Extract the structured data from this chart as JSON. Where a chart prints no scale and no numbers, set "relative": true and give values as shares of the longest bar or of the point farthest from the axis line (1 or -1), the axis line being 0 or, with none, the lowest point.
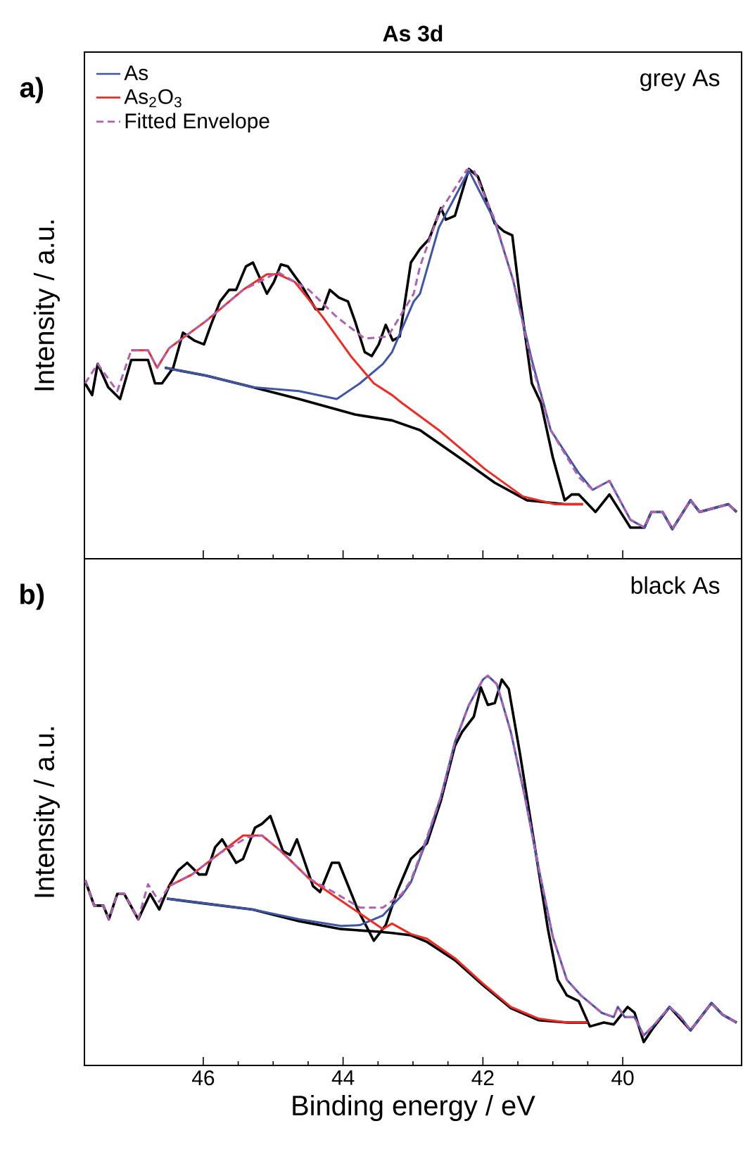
{
  "chart_data": [
    {
      "type": "line",
      "title": "As 3d",
      "ylabel": "Intensity / a.u.",
      "relative": true,
      "xlim": [
        47.7,
        38.3
      ],
      "xticks": [
        46,
        44,
        42,
        40
      ],
      "tick_labels": false,
      "legend": "top left",
      "annotations": [
        "a)",
        "grey As"
      ],
      "series": [
        {
          "color": "#000000",
          "x": [
            47.69,
            47.59,
            47.51,
            47.36,
            47.19,
            47.03,
            46.79,
            46.69,
            46.59,
            46.43,
            46.29,
            46.13,
            45.99,
            45.89,
            45.76,
            45.63,
            45.53,
            45.39,
            45.29,
            45.09,
            44.99,
            44.89,
            44.79,
            44.59,
            44.39,
            44.29,
            44.19,
            44.06,
            43.93,
            43.83,
            43.69,
            43.59,
            43.49,
            43.39,
            43.29,
            43.19,
            43.03,
            42.9,
            42.77,
            42.6,
            42.53,
            42.4,
            42.2,
            42.07,
            41.83,
            41.7,
            41.58,
            41.47,
            41.3,
            41.17,
            41.0,
            40.83,
            40.73,
            40.63,
            40.39,
            40.19,
            39.89,
            39.69,
            39.59,
            39.43,
            39.29,
            39.03,
            38.9,
            38.49,
            38.37
          ],
          "values": [
            0.45,
            0.42,
            0.5,
            0.44,
            0.41,
            0.51,
            0.51,
            0.45,
            0.45,
            0.49,
            0.58,
            0.56,
            0.55,
            0.6,
            0.66,
            0.69,
            0.69,
            0.75,
            0.76,
            0.68,
            0.71,
            0.755,
            0.75,
            0.7,
            0.64,
            0.64,
            0.69,
            0.67,
            0.66,
            0.61,
            0.53,
            0.52,
            0.55,
            0.6,
            0.56,
            0.57,
            0.76,
            0.795,
            0.82,
            0.9,
            0.87,
            0.88,
            1.0,
            0.98,
            0.86,
            0.84,
            0.83,
            0.67,
            0.45,
            0.4,
            0.26,
            0.15,
            0.165,
            0.165,
            0.12,
            0.165,
            0.08,
            0.08,
            0.12,
            0.12,
            0.076,
            0.15,
            0.12,
            0.14,
            0.12
          ]
        },
        {
          "color": "#000000",
          "x": [
            46.55,
            45.96,
            45.29,
            44.63,
            43.83,
            43.3,
            42.9,
            42.3,
            41.83,
            41.37,
            40.83,
            40.57
          ],
          "values": [
            0.49,
            0.47,
            0.44,
            0.41,
            0.37,
            0.355,
            0.33,
            0.255,
            0.195,
            0.15,
            0.14,
            0.14
          ]
        },
        {
          "name": "As",
          "color": "#3f55a6",
          "x": [
            46.55,
            45.96,
            45.29,
            44.63,
            44.09,
            43.76,
            43.43,
            43.3,
            42.99,
            42.9,
            42.63,
            42.2,
            41.83,
            41.57,
            41.3,
            41.03,
            40.63,
            40.43,
            40.19,
            39.89,
            39.69,
            39.59,
            39.43,
            39.29,
            39.03,
            38.9,
            38.49,
            38.37
          ],
          "values": [
            0.49,
            0.47,
            0.44,
            0.43,
            0.41,
            0.45,
            0.5,
            0.53,
            0.66,
            0.68,
            0.85,
            0.996,
            0.866,
            0.716,
            0.51,
            0.33,
            0.22,
            0.177,
            0.2,
            0.1,
            0.08,
            0.12,
            0.12,
            0.076,
            0.15,
            0.12,
            0.14,
            0.12
          ]
        },
        {
          "name": "As$_{2}$O$_{3}$",
          "color": "#ee2b25",
          "x": [
            47.03,
            46.79,
            46.66,
            46.49,
            45.96,
            45.43,
            45.09,
            44.93,
            44.69,
            44.29,
            43.89,
            43.56,
            43.3,
            43.16,
            42.63,
            41.97,
            41.43,
            40.97,
            40.57
          ],
          "values": [
            0.535,
            0.535,
            0.49,
            0.54,
            0.61,
            0.69,
            0.73,
            0.73,
            0.71,
            0.62,
            0.52,
            0.45,
            0.42,
            0.4,
            0.33,
            0.23,
            0.16,
            0.14,
            0.14
          ]
        },
        {
          "name": "Fitted Envelope",
          "color": "#b060b0",
          "line_style": "dashed",
          "x": [
            47.69,
            47.51,
            47.23,
            47.03,
            46.79,
            46.66,
            46.49,
            45.96,
            45.43,
            44.93,
            44.49,
            44.09,
            43.69,
            43.36,
            42.99,
            42.9,
            42.63,
            42.23,
            42.13,
            41.83,
            41.57,
            41.3,
            41.03,
            40.63,
            40.43,
            40.19,
            39.89,
            39.69,
            39.59,
            39.43,
            39.29,
            39.03,
            38.9,
            38.49,
            38.37
          ],
          "values": [
            0.45,
            0.5,
            0.43,
            0.535,
            0.535,
            0.49,
            0.54,
            0.61,
            0.69,
            0.735,
            0.69,
            0.62,
            0.565,
            0.57,
            0.68,
            0.75,
            0.886,
            0.998,
            0.997,
            0.87,
            0.716,
            0.5,
            0.33,
            0.21,
            0.177,
            0.2,
            0.1,
            0.08,
            0.12,
            0.12,
            0.076,
            0.15,
            0.12,
            0.14,
            0.12
          ]
        }
      ]
    },
    {
      "type": "line",
      "xlabel": "Binding energy / eV",
      "ylabel": "Intensity / a.u.",
      "relative": true,
      "xlim": [
        47.7,
        38.3
      ],
      "xticks": [
        46,
        44,
        42,
        40
      ],
      "tick_labels": "x",
      "annotations": [
        "b)",
        "black As"
      ],
      "series": [
        {
          "color": "#000000",
          "x": [
            47.69,
            47.56,
            47.43,
            47.35,
            47.23,
            47.13,
            46.93,
            46.76,
            46.63,
            46.49,
            46.36,
            46.23,
            46.06,
            45.96,
            45.83,
            45.73,
            45.53,
            45.43,
            45.26,
            45.16,
            45.04,
            44.86,
            44.76,
            44.66,
            44.43,
            44.33,
            44.16,
            44.06,
            43.79,
            43.56,
            43.39,
            43.23,
            43.03,
            42.8,
            42.6,
            42.4,
            42.3,
            42.13,
            42.03,
            41.93,
            41.83,
            41.73,
            41.63,
            41.47,
            41.23,
            41.07,
            40.93,
            40.8,
            40.63,
            40.47,
            40.27,
            40.13,
            39.93,
            39.83,
            39.7,
            39.57,
            39.33,
            39.03,
            38.73,
            38.57,
            38.37
          ],
          "values": [
            0.475,
            0.41,
            0.41,
            0.375,
            0.44,
            0.44,
            0.375,
            0.44,
            0.4,
            0.46,
            0.5,
            0.52,
            0.49,
            0.49,
            0.56,
            0.58,
            0.52,
            0.53,
            0.61,
            0.62,
            0.64,
            0.55,
            0.54,
            0.58,
            0.46,
            0.445,
            0.52,
            0.52,
            0.4,
            0.32,
            0.36,
            0.445,
            0.53,
            0.57,
            0.68,
            0.82,
            0.855,
            0.895,
            0.97,
            0.925,
            0.93,
            0.99,
            0.966,
            0.8,
            0.53,
            0.35,
            0.22,
            0.18,
            0.165,
            0.1,
            0.11,
            0.105,
            0.15,
            0.135,
            0.06,
            0.095,
            0.15,
            0.09,
            0.16,
            0.13,
            0.11
          ]
        },
        {
          "color": "#000000",
          "x": [
            46.52,
            46.0,
            45.29,
            44.63,
            44.03,
            43.49,
            43.3,
            43.03,
            42.8,
            42.4,
            42.0,
            41.6,
            41.2,
            40.8,
            40.5
          ],
          "values": [
            0.428,
            0.416,
            0.4,
            0.37,
            0.35,
            0.343,
            0.34,
            0.334,
            0.317,
            0.27,
            0.206,
            0.147,
            0.116,
            0.11,
            0.11
          ]
        },
        {
          "color": "#3f55a6",
          "x": [
            46.52,
            46.0,
            45.29,
            44.63,
            44.03,
            43.76,
            43.43,
            43.3,
            43.16,
            43.03,
            42.8,
            42.6,
            42.4,
            42.2,
            42.0,
            41.93,
            41.8,
            41.6,
            41.4,
            41.2,
            41.0,
            40.8,
            40.6,
            40.4,
            40.3,
            40.13,
            40.07,
            39.97,
            39.83,
            39.7,
            39.57,
            39.33,
            39.17,
            39.03,
            38.73,
            38.57,
            38.37
          ],
          "values": [
            0.428,
            0.416,
            0.4,
            0.375,
            0.358,
            0.36,
            0.385,
            0.41,
            0.436,
            0.47,
            0.58,
            0.69,
            0.83,
            0.925,
            0.99,
            1.0,
            0.978,
            0.855,
            0.69,
            0.504,
            0.33,
            0.22,
            0.18,
            0.15,
            0.135,
            0.124,
            0.15,
            0.124,
            0.124,
            0.077,
            0.1,
            0.15,
            0.124,
            0.09,
            0.16,
            0.13,
            0.11
          ]
        },
        {
          "color": "#ee2b25",
          "x": [
            46.49,
            46.16,
            45.76,
            45.43,
            45.16,
            44.89,
            44.49,
            44.09,
            43.76,
            43.43,
            43.3,
            43.03,
            42.8,
            42.4,
            42.0,
            41.6,
            41.2,
            40.8,
            40.5
          ],
          "values": [
            0.46,
            0.49,
            0.545,
            0.59,
            0.59,
            0.55,
            0.48,
            0.43,
            0.39,
            0.35,
            0.364,
            0.337,
            0.325,
            0.275,
            0.21,
            0.15,
            0.12,
            0.11,
            0.11
          ]
        },
        {
          "color": "#b060b0",
          "line_style": "dashed",
          "x": [
            47.69,
            47.56,
            47.43,
            47.35,
            47.23,
            47.13,
            46.93,
            46.79,
            46.63,
            46.49,
            46.16,
            45.76,
            45.36,
            45.16,
            44.89,
            44.49,
            44.09,
            43.76,
            43.43,
            43.16,
            43.03,
            42.8,
            42.6,
            42.4,
            42.2,
            42.0,
            41.93,
            41.8,
            41.6,
            41.4,
            41.2,
            41.0,
            40.8,
            40.6,
            40.4,
            40.3,
            40.13,
            40.07,
            39.97,
            39.83,
            39.7,
            39.57,
            39.33,
            39.17,
            39.03,
            38.73,
            38.57,
            38.37
          ],
          "values": [
            0.475,
            0.41,
            0.41,
            0.375,
            0.44,
            0.44,
            0.375,
            0.465,
            0.42,
            0.46,
            0.49,
            0.545,
            0.586,
            0.59,
            0.55,
            0.48,
            0.44,
            0.405,
            0.405,
            0.44,
            0.475,
            0.586,
            0.69,
            0.83,
            0.925,
            0.99,
            1.0,
            0.978,
            0.855,
            0.69,
            0.504,
            0.33,
            0.22,
            0.18,
            0.15,
            0.135,
            0.124,
            0.15,
            0.124,
            0.124,
            0.077,
            0.1,
            0.15,
            0.124,
            0.09,
            0.16,
            0.13,
            0.11
          ]
        }
      ]
    }
  ]
}
